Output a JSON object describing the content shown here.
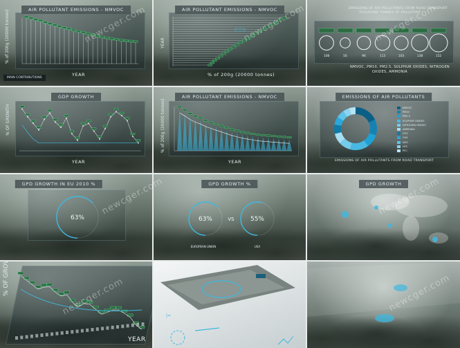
{
  "watermark": "newcger.com",
  "tiles": {
    "t1": {
      "title": "AIR POLLUTANT EMISSIONS - NMVOC",
      "ylabel": "% of 200g (20000 tonnes)",
      "xlabel": "YEAR",
      "note": "MAIN CONTRIBUTIONS"
    },
    "t2": {
      "title": "AIR POLLUTANT EMISSIONS - NMVOC",
      "ylabel": "YEAR",
      "xlabel": "% of 200g (20000 tonnes)"
    },
    "t3": {
      "header_lines": [
        "EMISSIONS OF AIR POLLUTANTS FROM ROAD TRANSPORT",
        "THOUSAND TONNES OF POLLUTANT"
      ],
      "bubble_values": [
        "108",
        "56",
        "96",
        "113",
        "103",
        "138",
        "152"
      ],
      "caption_lines": [
        "NMVOC, PM10, PM2.5, SULPHUR OXIDES, NITROGEN",
        "OXIDES, AMMONIA"
      ]
    },
    "t4": {
      "title": "GDP GROWTH",
      "ylabel": "% OF GROWTH",
      "xlabel": "YEAR"
    },
    "t5": {
      "title": "AIR POLLUTANT EMISSIONS - NMVOC",
      "ylabel": "% of 200g (20000 tonnes)",
      "xlabel": "YEAR"
    },
    "t6": {
      "title": "EMISSIONS OF AIR POLLUTANTS",
      "legend": [
        "NMVOC",
        "PM10",
        "PM2.5",
        "SULPHUR OXIDES",
        "NITROGEN OXIDES",
        "AMMONIA",
        "CO2",
        "CH4",
        "N2O",
        "HFC",
        "PFC"
      ],
      "footnote": "EMISSIONS OF AIR POLLUTANTS FROM ROAD TRANSPORT"
    },
    "t7": {
      "title": "GPD GROWTH IN EU 2010 %",
      "value": "63%"
    },
    "t8": {
      "title": "GPD GROWTH %",
      "left_value": "63%",
      "vs": "VS",
      "right_value": "55%",
      "left_label": "EUROPEAN UNION",
      "right_label": "USA"
    },
    "t9": {
      "title": "GPD GROWTH"
    },
    "t10": {
      "ylabel": "% OF GROWTH",
      "xlabel": "YEAR"
    }
  },
  "colors": {
    "accent": "#3fb8e0",
    "green": "#57d48a",
    "panel": "#1f3238"
  },
  "chart_data": [
    {
      "type": "bar",
      "title": "AIR POLLUTANT EMISSIONS - NMVOC",
      "xlabel": "YEAR",
      "ylabel": "% of 200g (20000 tonnes)",
      "values": [
        100,
        97,
        94,
        92,
        88,
        85,
        82,
        79,
        76,
        74,
        71,
        68,
        66,
        63,
        61,
        58,
        56,
        54,
        52,
        51,
        49,
        48,
        47,
        46
      ]
    },
    {
      "type": "bar",
      "title": "AIR POLLUTANT EMISSIONS - NMVOC",
      "xlabel": "% of 200g (20000 tonnes)",
      "ylabel": "YEAR",
      "values": [
        100,
        96,
        93,
        90,
        86,
        83,
        80,
        77,
        74,
        71,
        68,
        65,
        62,
        60,
        57,
        55,
        53,
        51,
        49,
        47,
        46,
        45
      ]
    },
    {
      "type": "bubble",
      "values": [
        108,
        56,
        96,
        113,
        103,
        138,
        152
      ]
    },
    {
      "type": "line",
      "title": "GDP GROWTH",
      "xlabel": "YEAR",
      "ylabel": "% OF GROWTH",
      "series": [
        {
          "values": [
            3.2,
            2.6,
            2.1,
            1.6,
            2.4,
            2.9,
            2.2,
            1.8,
            2.5,
            1.3,
            0.8,
            1.9,
            2.1,
            1.5,
            0.9,
            1.7,
            2.6,
            3.0,
            2.7,
            2.3,
            1.1,
            0.6
          ]
        },
        {
          "values": [
            2.0,
            1.4,
            0.9,
            0.6,
            0.6,
            0.6,
            0.6,
            0.6,
            0.6,
            0.6,
            0.6,
            0.6,
            0.6,
            0.6,
            0.6,
            0.6,
            0.6,
            0.6,
            0.6,
            0.6,
            0.6,
            0.6
          ]
        }
      ]
    },
    {
      "type": "area",
      "title": "AIR POLLUTANT EMISSIONS - NMVOC",
      "xlabel": "YEAR",
      "ylabel": "% of 200g (20000 tonnes)",
      "values": [
        95,
        88,
        80,
        74,
        70,
        64,
        60,
        56,
        52,
        48,
        44,
        41,
        38,
        36,
        34,
        32,
        31,
        30,
        29,
        28,
        27,
        26
      ]
    },
    {
      "type": "pie",
      "title": "EMISSIONS OF AIR POLLUTANTS",
      "values": [
        18,
        12,
        10,
        14,
        9,
        8,
        7,
        6,
        6,
        5,
        5
      ]
    }
  ]
}
